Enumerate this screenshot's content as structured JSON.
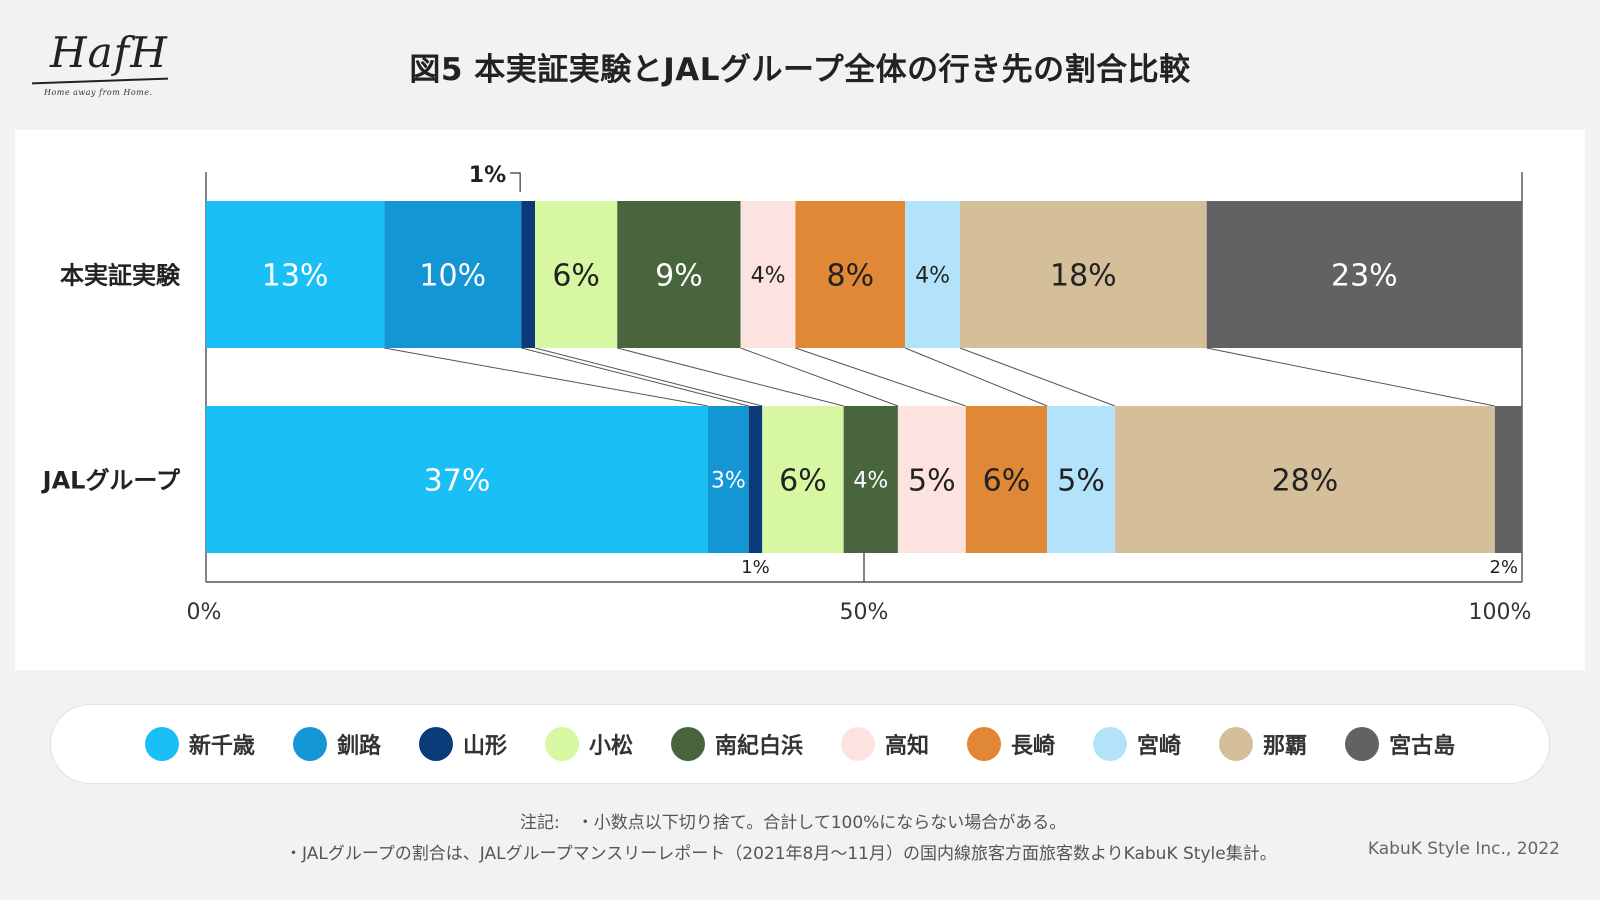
{
  "logo": {
    "script": "HafH",
    "tagline": "Home away from Home."
  },
  "title": "図5 本実証実験とJALグループ全体の行き先の割合比較",
  "chart_data": {
    "type": "bar",
    "orientation": "horizontal-stacked-100",
    "title": "図5 本実証実験とJALグループ全体の行き先の割合比較",
    "categories": [
      "本実証実験",
      "JALグループ"
    ],
    "series": [
      {
        "name": "新千歳",
        "color": "#1ac0f5",
        "values": [
          13,
          37
        ],
        "labels": [
          "13%",
          "37%"
        ]
      },
      {
        "name": "釧路",
        "color": "#1496d4",
        "values": [
          10,
          3
        ],
        "labels": [
          "10%",
          "3%"
        ]
      },
      {
        "name": "山形",
        "color": "#0a3a78",
        "values": [
          1,
          1
        ],
        "labels": [
          "1%",
          "1%"
        ]
      },
      {
        "name": "小松",
        "color": "#d8f7a2",
        "values": [
          6,
          6
        ],
        "labels": [
          "6%",
          "6%"
        ]
      },
      {
        "name": "南紀白浜",
        "color": "#49653d",
        "values": [
          9,
          4
        ],
        "labels": [
          "9%",
          "4%"
        ]
      },
      {
        "name": "高知",
        "color": "#fde3df",
        "values": [
          4,
          5
        ],
        "labels": [
          "4%",
          "5%"
        ]
      },
      {
        "name": "長崎",
        "color": "#e08835",
        "values": [
          8,
          6
        ],
        "labels": [
          "8%",
          "6%"
        ]
      },
      {
        "name": "宮崎",
        "color": "#b3e3fb",
        "values": [
          4,
          5
        ],
        "labels": [
          "4%",
          "5%"
        ]
      },
      {
        "name": "那覇",
        "color": "#d4bf9a",
        "values": [
          18,
          28
        ],
        "labels": [
          "18%",
          "28%"
        ]
      },
      {
        "name": "宮古島",
        "color": "#626264",
        "values": [
          23,
          2
        ],
        "labels": [
          "23%",
          "2%"
        ]
      }
    ],
    "x_ticks": [
      "0%",
      "50%",
      "100%"
    ],
    "xlim": [
      0,
      100
    ]
  },
  "notes": {
    "line1": "注記:　・小数点以下切り捨て。合計して100%にならない場合がある。",
    "line2": "・JALグループの割合は、JALグループマンスリーレポート（2021年8月〜11月）の国内線旅客方面旅客数よりKabuK Style集計。",
    "credit": "KabuK Style Inc., 2022"
  }
}
